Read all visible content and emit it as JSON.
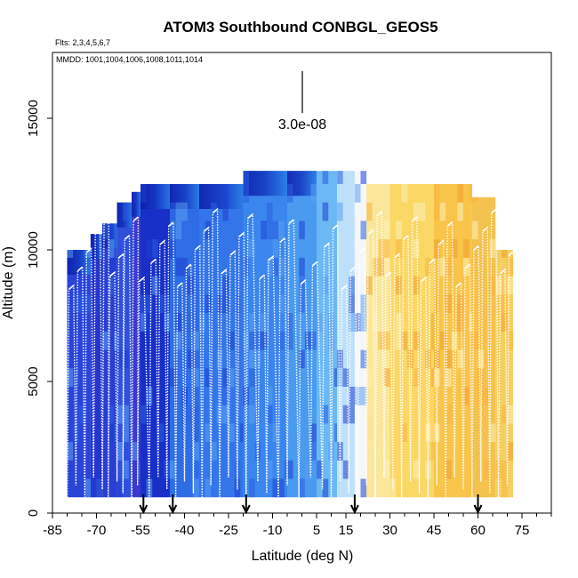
{
  "chart_data": {
    "type": "heatmap",
    "title": "ATOM3 Southbound CONBGL_GEOS5",
    "flights_note": "Flts: 2,3,4,5,6,7",
    "mmdd_note": "MMDD: 1001,1004,1006,1008,1011,1014",
    "xlabel": "Latitude (deg N)",
    "ylabel": "Altitude (m)",
    "xlim": [
      -85,
      85
    ],
    "ylim": [
      0,
      17500
    ],
    "x_ticks": [
      -85,
      -70,
      -55,
      -40,
      -25,
      -10,
      5,
      15,
      30,
      45,
      60,
      75
    ],
    "y_ticks": [
      0,
      5000,
      10000,
      15000
    ],
    "scale_bar_label": "3.0e-08",
    "arrows_lat": [
      -54,
      -44,
      -19,
      18,
      60
    ],
    "curtain_columns": [
      {
        "lat0": -80,
        "lat1": -72,
        "top": 10000,
        "color": "#2a44d8"
      },
      {
        "lat0": -72,
        "lat1": -68,
        "top": 10600,
        "color": "#2636cc"
      },
      {
        "lat0": -68,
        "lat1": -63,
        "top": 11000,
        "color": "#2a3fd2"
      },
      {
        "lat0": -63,
        "lat1": -58,
        "top": 11800,
        "color": "#2f4fdc"
      },
      {
        "lat0": -58,
        "lat1": -55,
        "top": 12200,
        "color": "#3a3ad0"
      },
      {
        "lat0": -55,
        "lat1": -45,
        "top": 12500,
        "color": "#1830c8"
      },
      {
        "lat0": -45,
        "lat1": -35,
        "top": 12500,
        "color": "#2f6de6"
      },
      {
        "lat0": -35,
        "lat1": -20,
        "top": 12500,
        "color": "#3476ea"
      },
      {
        "lat0": -20,
        "lat1": -5,
        "top": 13000,
        "color": "#3a86ee"
      },
      {
        "lat0": -5,
        "lat1": 5,
        "top": 13000,
        "color": "#4a9af0"
      },
      {
        "lat0": 5,
        "lat1": 12,
        "top": 13000,
        "color": "#6cb8f4"
      },
      {
        "lat0": 12,
        "lat1": 18,
        "top": 13000,
        "color": "#bfe0fb"
      },
      {
        "lat0": 18,
        "lat1": 22,
        "top": 13000,
        "color": "#f4f6fa"
      },
      {
        "lat0": 22,
        "lat1": 30,
        "top": 12500,
        "color": "#fbe79a"
      },
      {
        "lat0": 30,
        "lat1": 45,
        "top": 12500,
        "color": "#fbd765"
      },
      {
        "lat0": 45,
        "lat1": 58,
        "top": 12500,
        "color": "#f8c44a"
      },
      {
        "lat0": 58,
        "lat1": 66,
        "top": 12000,
        "color": "#f4c24e"
      },
      {
        "lat0": 66,
        "lat1": 72,
        "top": 10000,
        "color": "#f6cf62"
      }
    ],
    "profiles_lat": [
      -80,
      -77,
      -74,
      -71,
      -68,
      -66,
      -63,
      -61,
      -58,
      -56,
      -52,
      -49,
      -46,
      -43,
      -40,
      -37,
      -34,
      -31,
      -28,
      -25,
      -22,
      -19,
      -15,
      -12,
      -8,
      -5,
      -1,
      3,
      7,
      10,
      13,
      16,
      19,
      22,
      25,
      28,
      31,
      34,
      37,
      40,
      43,
      46,
      49,
      52,
      55,
      58,
      61,
      64,
      67,
      70
    ]
  }
}
